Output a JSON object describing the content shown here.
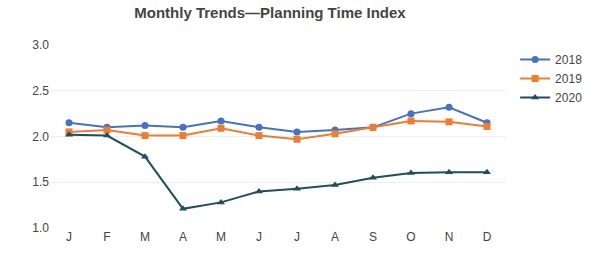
{
  "chart_data": {
    "type": "line",
    "title": "Monthly Trends—Planning Time Index",
    "categories": [
      "J",
      "F",
      "M",
      "A",
      "M",
      "J",
      "J",
      "A",
      "S",
      "O",
      "N",
      "D"
    ],
    "series": [
      {
        "name": "2018",
        "color": "#4472C4",
        "marker": "circle",
        "values": [
          2.15,
          2.1,
          2.12,
          2.1,
          2.17,
          2.1,
          2.05,
          2.07,
          2.1,
          2.25,
          2.32,
          2.15
        ]
      },
      {
        "name": "2019",
        "color": "#ED7D31",
        "marker": "square",
        "values": [
          2.05,
          2.07,
          2.01,
          2.01,
          2.09,
          2.01,
          1.97,
          2.03,
          2.1,
          2.17,
          2.16,
          2.11
        ]
      },
      {
        "name": "2020",
        "color": "#1F4E5F",
        "marker": "triangle",
        "values": [
          2.02,
          2.01,
          1.78,
          1.21,
          1.28,
          1.4,
          1.43,
          1.47,
          1.55,
          1.6,
          1.61,
          1.61
        ]
      }
    ],
    "ylim": [
      1.0,
      3.0
    ],
    "yticks": [
      {
        "value": 1.0,
        "label": "1.0"
      },
      1.5,
      {
        "value": 2.0,
        "label": "2.0"
      },
      2.5,
      {
        "value": 3.0,
        "label": "3.0"
      }
    ],
    "grid": true,
    "legend": "right"
  }
}
